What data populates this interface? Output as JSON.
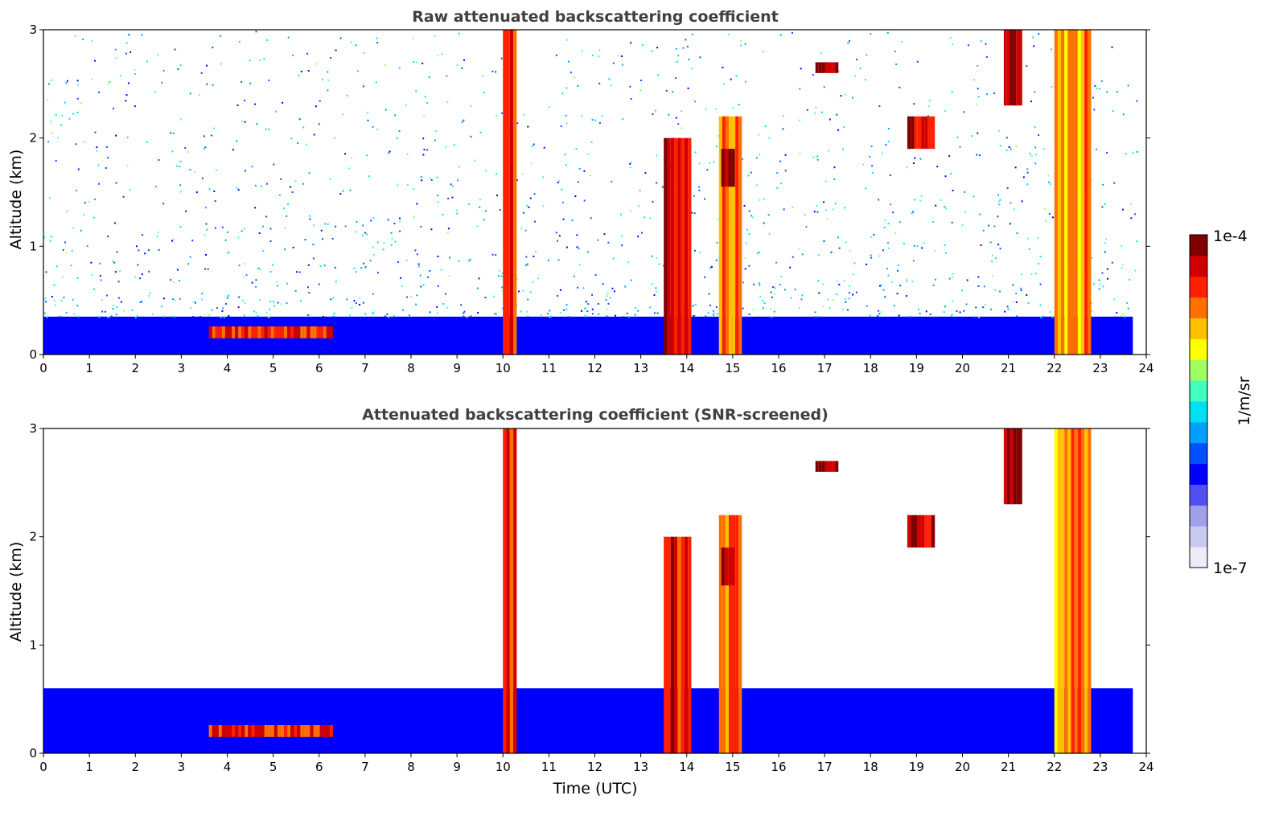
{
  "chart_data": [
    {
      "type": "heatmap",
      "title": "Raw attenuated backscattering coefficient",
      "xlabel": "",
      "ylabel": "Altitude (km)",
      "xlim": [
        0,
        24
      ],
      "ylim": [
        0,
        3
      ],
      "x_ticks": [
        "0",
        "1",
        "2",
        "3",
        "4",
        "5",
        "6",
        "7",
        "8",
        "9",
        "10",
        "11",
        "12",
        "13",
        "14",
        "15",
        "16",
        "17",
        "18",
        "19",
        "20",
        "21",
        "22",
        "23",
        "24"
      ],
      "y_ticks": [
        "0",
        "1",
        "2",
        "3"
      ],
      "colorscale": "jet",
      "log_scale": true,
      "background": {
        "boundary_layer_top_km": 0.35,
        "noise": "dense low, sparse high"
      },
      "features": [
        {
          "x_start": 3.6,
          "x_end": 6.3,
          "y_bottom": 0.15,
          "y_top": 0.26,
          "intensity": 0.85
        },
        {
          "x_start": 10.0,
          "x_end": 10.3,
          "y_bottom": 0.0,
          "y_top": 3.0,
          "intensity": 0.85
        },
        {
          "x_start": 13.5,
          "x_end": 14.1,
          "y_bottom": 0.0,
          "y_top": 2.0,
          "intensity": 0.88
        },
        {
          "x_start": 14.7,
          "x_end": 15.2,
          "y_bottom": 0.0,
          "y_top": 2.2,
          "intensity": 0.8
        },
        {
          "x_start": 14.75,
          "x_end": 15.05,
          "y_bottom": 1.55,
          "y_top": 1.9,
          "intensity": 0.98
        },
        {
          "x_start": 16.8,
          "x_end": 17.3,
          "y_bottom": 2.6,
          "y_top": 2.7,
          "intensity": 0.97
        },
        {
          "x_start": 18.8,
          "x_end": 19.4,
          "y_bottom": 1.9,
          "y_top": 2.2,
          "intensity": 0.93
        },
        {
          "x_start": 20.9,
          "x_end": 21.3,
          "y_bottom": 2.3,
          "y_top": 3.0,
          "intensity": 0.95
        },
        {
          "x_start": 22.0,
          "x_end": 22.8,
          "y_bottom": 0.0,
          "y_top": 3.0,
          "intensity": 0.75
        }
      ]
    },
    {
      "type": "heatmap",
      "title": "Attenuated backscattering coefficient (SNR-screened)",
      "xlabel": "Time (UTC)",
      "ylabel": "Altitude (km)",
      "xlim": [
        0,
        24
      ],
      "ylim": [
        0,
        3
      ],
      "x_ticks": [
        "0",
        "1",
        "2",
        "3",
        "4",
        "5",
        "6",
        "7",
        "8",
        "9",
        "10",
        "11",
        "12",
        "13",
        "14",
        "15",
        "16",
        "17",
        "18",
        "19",
        "20",
        "21",
        "22",
        "23",
        "24"
      ],
      "y_ticks": [
        "0",
        "1",
        "2",
        "3"
      ],
      "colorscale": "jet",
      "log_scale": true,
      "background": {
        "boundary_layer_top_km": 0.6,
        "noise": "screened"
      },
      "features": [
        {
          "x_start": 3.6,
          "x_end": 6.3,
          "y_bottom": 0.15,
          "y_top": 0.26,
          "intensity": 0.85
        },
        {
          "x_start": 10.0,
          "x_end": 10.3,
          "y_bottom": 0.0,
          "y_top": 3.0,
          "intensity": 0.85
        },
        {
          "x_start": 13.5,
          "x_end": 14.1,
          "y_bottom": 0.0,
          "y_top": 2.0,
          "intensity": 0.88
        },
        {
          "x_start": 14.7,
          "x_end": 15.2,
          "y_bottom": 0.0,
          "y_top": 2.2,
          "intensity": 0.8
        },
        {
          "x_start": 14.75,
          "x_end": 15.05,
          "y_bottom": 1.55,
          "y_top": 1.9,
          "intensity": 0.98
        },
        {
          "x_start": 16.8,
          "x_end": 17.3,
          "y_bottom": 2.6,
          "y_top": 2.7,
          "intensity": 0.97
        },
        {
          "x_start": 18.8,
          "x_end": 19.4,
          "y_bottom": 1.9,
          "y_top": 2.2,
          "intensity": 0.93
        },
        {
          "x_start": 20.9,
          "x_end": 21.3,
          "y_bottom": 2.3,
          "y_top": 3.0,
          "intensity": 0.95
        },
        {
          "x_start": 22.0,
          "x_end": 22.8,
          "y_bottom": 0.0,
          "y_top": 3.0,
          "intensity": 0.75
        }
      ]
    }
  ],
  "colorbar": {
    "label": "1/m/sr",
    "min_label": "1e-7",
    "max_label": "1e-4",
    "colors": [
      "#ececf8",
      "#c8c8f0",
      "#a0a0ea",
      "#5050f0",
      "#0000ff",
      "#0050ff",
      "#00a0ff",
      "#00e0f0",
      "#40ffc0",
      "#a0ff60",
      "#ffff00",
      "#ffc000",
      "#ff7000",
      "#ff2000",
      "#d00000",
      "#800000"
    ]
  }
}
